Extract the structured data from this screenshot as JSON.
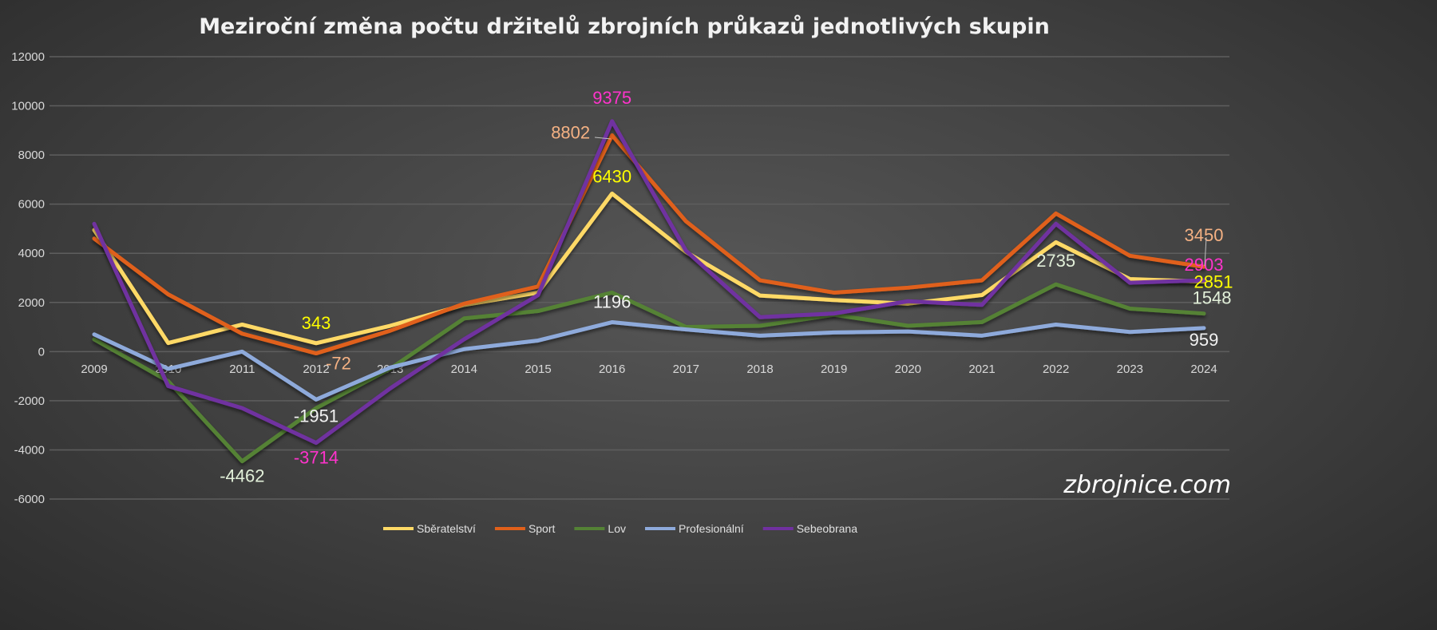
{
  "chart_data": {
    "type": "line",
    "title": "Meziroční změna počtu držitelů zbrojních průkazů jednotlivých skupin",
    "xlabel": "",
    "ylabel": "",
    "ylim": [
      -6000,
      12000
    ],
    "yticks": [
      "12000",
      "10000",
      "8000",
      "6000",
      "4000",
      "2000",
      "0",
      "-2000",
      "-4000",
      "-6000"
    ],
    "grid": true,
    "legend_position": "bottom",
    "categories": [
      "2009",
      "2010",
      "2011",
      "2012",
      "2013",
      "2014",
      "2015",
      "2016",
      "2017",
      "2018",
      "2019",
      "2020",
      "2021",
      "2022",
      "2023",
      "2024"
    ],
    "series": [
      {
        "name": "Sběratelství",
        "color": "#ffd966",
        "values": [
          4950,
          350,
          1100,
          343,
          1050,
          1900,
          2400,
          6430,
          4050,
          2280,
          2100,
          1950,
          2300,
          4450,
          2950,
          2851
        ]
      },
      {
        "name": "Sport",
        "color": "#e0601a",
        "values": [
          4600,
          2330,
          730,
          -72,
          850,
          1950,
          2650,
          8802,
          5300,
          2900,
          2400,
          2600,
          2900,
          5620,
          3900,
          3450
        ]
      },
      {
        "name": "Lov",
        "color": "#548235",
        "values": [
          500,
          -1200,
          -4462,
          -2300,
          -700,
          1350,
          1650,
          2400,
          1000,
          1050,
          1500,
          1050,
          1200,
          2735,
          1750,
          1548
        ]
      },
      {
        "name": "Profesionální",
        "color": "#8eaadb",
        "values": [
          700,
          -700,
          0,
          -1951,
          -650,
          100,
          450,
          1196,
          900,
          650,
          780,
          820,
          650,
          1100,
          800,
          959
        ]
      },
      {
        "name": "Sebeobrana",
        "color": "#7030a0",
        "values": [
          5200,
          -1400,
          -2300,
          -3714,
          -1500,
          500,
          2300,
          9375,
          4100,
          1400,
          1550,
          2050,
          1900,
          5200,
          2800,
          2903
        ]
      }
    ],
    "data_labels": [
      {
        "series": 0,
        "year": "2012",
        "text": "343",
        "color": "#ffff00"
      },
      {
        "series": 0,
        "year": "2016",
        "text": "6430",
        "color": "#ffff00"
      },
      {
        "series": 0,
        "year": "2024",
        "text": "2851",
        "color": "#ffff00"
      },
      {
        "series": 1,
        "year": "2012",
        "text": "-72",
        "color": "#f4b183"
      },
      {
        "series": 1,
        "year": "2016",
        "text": "8802",
        "color": "#f4b183"
      },
      {
        "series": 1,
        "year": "2024",
        "text": "3450",
        "color": "#f4b183"
      },
      {
        "series": 2,
        "year": "2011",
        "text": "-4462",
        "color": "#e2f0d9"
      },
      {
        "series": 2,
        "year": "2022",
        "text": "2735",
        "color": "#e2f0d9"
      },
      {
        "series": 2,
        "year": "2024",
        "text": "1548",
        "color": "#e2f0d9"
      },
      {
        "series": 3,
        "year": "2012",
        "text": "-1951",
        "color": "#f2f2f2"
      },
      {
        "series": 3,
        "year": "2016",
        "text": "1196",
        "color": "#f2f2f2"
      },
      {
        "series": 3,
        "year": "2024",
        "text": "959",
        "color": "#f2f2f2"
      },
      {
        "series": 4,
        "year": "2012",
        "text": "-3714",
        "color": "#ff33cc"
      },
      {
        "series": 4,
        "year": "2016",
        "text": "9375",
        "color": "#ff33cc"
      },
      {
        "series": 4,
        "year": "2024",
        "text": "2903",
        "color": "#ff33cc"
      }
    ],
    "watermark": "zbrojnice.com"
  }
}
